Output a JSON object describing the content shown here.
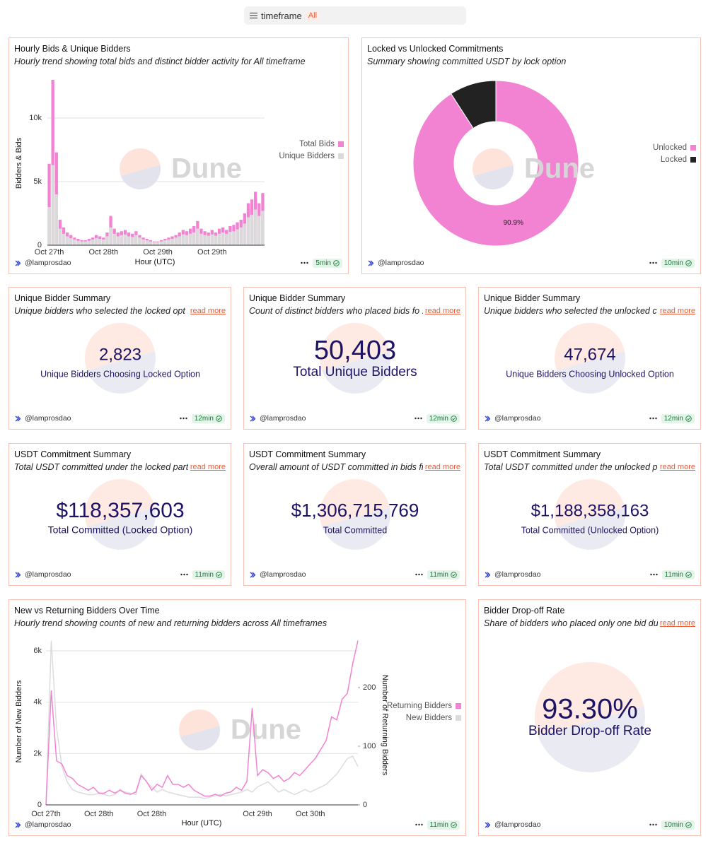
{
  "filter": {
    "label": "timeframe",
    "value": "All"
  },
  "chart_data": [
    {
      "type": "bar",
      "title": "Hourly Bids & Unique Bidders",
      "subtitle": "Hourly trend showing total bids and distinct bidder activity for All timeframe",
      "x_label": "Hour (UTC)",
      "y_label": "Bidders & Bids",
      "watermark": "Dune",
      "categories": [
        "Oct 27th",
        null,
        null,
        null,
        null,
        null,
        null,
        null,
        null,
        null,
        null,
        null,
        null,
        null,
        null,
        "Oct 28th",
        null,
        null,
        null,
        null,
        null,
        null,
        null,
        null,
        null,
        null,
        null,
        null,
        null,
        null,
        "Oct 29th",
        null,
        null,
        null,
        null,
        null,
        null,
        null,
        null,
        null,
        null,
        null,
        null,
        null,
        null,
        "Oct 29th",
        null,
        null,
        null,
        null,
        null,
        null,
        null,
        null,
        null,
        null,
        null,
        null,
        null,
        null
      ],
      "series": [
        {
          "name": "Total Bids",
          "color": "#f283d3",
          "values": [
            6400,
            13000,
            7300,
            2000,
            1400,
            1000,
            800,
            600,
            500,
            400,
            400,
            500,
            600,
            800,
            700,
            600,
            1000,
            2300,
            1300,
            1000,
            1100,
            1200,
            1000,
            900,
            1100,
            800,
            600,
            500,
            400,
            300,
            300,
            400,
            500,
            600,
            700,
            800,
            1000,
            1200,
            1100,
            1300,
            1500,
            1900,
            1300,
            1100,
            1000,
            1200,
            1000,
            1300,
            1400,
            1200,
            1500,
            1600,
            1800,
            2000,
            2500,
            3300,
            3600,
            4200,
            3300,
            4100
          ]
        },
        {
          "name": "Unique Bidders",
          "color": "#dadada",
          "values": [
            3000,
            6300,
            4000,
            1300,
            900,
            700,
            550,
            450,
            350,
            300,
            300,
            350,
            450,
            550,
            500,
            450,
            700,
            1400,
            900,
            700,
            800,
            850,
            700,
            650,
            800,
            600,
            450,
            380,
            300,
            250,
            250,
            300,
            380,
            450,
            500,
            600,
            700,
            850,
            800,
            900,
            1000,
            1300,
            900,
            800,
            750,
            850,
            750,
            900,
            1000,
            900,
            1050,
            1100,
            1250,
            1400,
            1700,
            2200,
            2400,
            2800,
            2300,
            2700
          ]
        }
      ],
      "ylim": [
        0,
        13000
      ],
      "yticks": [
        0,
        {
          "value": 5000,
          "label": "5k"
        },
        {
          "value": 10000,
          "label": "10k"
        }
      ],
      "grid": true,
      "legend": "right",
      "author": "@lamprosdao",
      "refresh": "5min"
    },
    {
      "type": "pie",
      "title": "Locked vs Unlocked Commitments",
      "subtitle": "Summary showing committed USDT by lock option",
      "watermark": "Dune",
      "categories": [
        "Unlocked",
        "Locked"
      ],
      "values": [
        90.9,
        9.1
      ],
      "value_labels": [
        "90.9%",
        "9.1%"
      ],
      "colors": [
        "#f283d3",
        "#222222"
      ],
      "legend": "right",
      "author": "@lamprosdao",
      "refresh": "10min"
    },
    {
      "type": "line",
      "title": "New vs Returning Bidders Over Time",
      "subtitle": "Hourly trend showing counts of new and returning bidders across All timeframes",
      "x_label": "Hour (UTC)",
      "y_label": "Number of New Bidders",
      "y2_label": "Number of Returning Bidders",
      "watermark": "Dune",
      "categories": [
        "Oct 27th",
        null,
        null,
        null,
        null,
        null,
        null,
        null,
        null,
        null,
        "Oct 28th",
        null,
        null,
        null,
        null,
        null,
        null,
        null,
        null,
        null,
        "Oct 28th",
        null,
        null,
        null,
        null,
        null,
        null,
        null,
        null,
        null,
        null,
        null,
        null,
        null,
        null,
        null,
        null,
        null,
        null,
        null,
        "Oct 29th",
        null,
        null,
        null,
        null,
        null,
        null,
        null,
        null,
        null,
        "Oct 30th",
        null,
        null,
        null,
        null,
        null,
        null,
        null,
        null,
        null
      ],
      "series": [
        {
          "name": "Returning Bidders",
          "color": "#f283d3",
          "axis": "y2",
          "values": [
            0,
            195,
            75,
            70,
            50,
            45,
            35,
            30,
            25,
            30,
            20,
            20,
            25,
            20,
            25,
            20,
            18,
            22,
            50,
            40,
            25,
            35,
            30,
            50,
            35,
            35,
            30,
            35,
            25,
            20,
            15,
            15,
            18,
            15,
            20,
            22,
            30,
            25,
            40,
            165,
            50,
            60,
            55,
            45,
            50,
            40,
            45,
            55,
            50,
            60,
            70,
            80,
            95,
            110,
            150,
            145,
            180,
            190,
            240,
            280
          ]
        },
        {
          "name": "New Bidders",
          "color": "#dcdcdc",
          "values": [
            0,
            6400,
            3000,
            1500,
            900,
            600,
            500,
            450,
            400,
            400,
            450,
            400,
            350,
            400,
            600,
            500,
            450,
            400,
            1200,
            900,
            700,
            500,
            600,
            500,
            450,
            400,
            350,
            300,
            300,
            300,
            250,
            300,
            350,
            400,
            350,
            400,
            450,
            500,
            600,
            500,
            700,
            800,
            900,
            700,
            500,
            600,
            500,
            400,
            500,
            600,
            500,
            600,
            700,
            800,
            1000,
            1200,
            1500,
            1800,
            1900,
            1500
          ]
        }
      ],
      "ylim": [
        0,
        6400
      ],
      "yticks": [
        0,
        {
          "value": 2000,
          "label": "2k"
        },
        {
          "value": 4000,
          "label": "4k"
        },
        {
          "value": 6000,
          "label": "6k"
        }
      ],
      "y2lim": [
        0,
        280
      ],
      "y2ticks": [
        0,
        100,
        200
      ],
      "grid": true,
      "legend": "right",
      "author": "@lamprosdao",
      "refresh": "11min"
    }
  ],
  "counters": [
    {
      "title": "Unique Bidder Summary",
      "subtitle": "Unique bidders who selected the locked opt ...",
      "link": "read more",
      "value": "2,823",
      "label": "Unique Bidders Choosing Locked Option",
      "author": "@lamprosdao",
      "refresh": "12min"
    },
    {
      "title": "Unique Bidder Summary",
      "subtitle": "Count of distinct bidders who placed bids fo ...",
      "link": "read more",
      "value": "50,403",
      "label": "Total Unique Bidders",
      "author": "@lamprosdao",
      "refresh": "12min"
    },
    {
      "title": "Unique Bidder Summary",
      "subtitle": "Unique bidders who selected the unlocked c ...",
      "link": "read more",
      "value": "47,674",
      "label": "Unique Bidders Choosing Unlocked Option",
      "author": "@lamprosdao",
      "refresh": "12min"
    },
    {
      "title": "USDT Commitment Summary",
      "subtitle": "Total USDT committed under the locked part ...",
      "link": "read more",
      "value": "$118,357,603",
      "label": "Total Committed (Locked Option)",
      "author": "@lamprosdao",
      "refresh": "11min"
    },
    {
      "title": "USDT Commitment Summary",
      "subtitle": "Overall amount of USDT committed in bids fi ...",
      "link": "read more",
      "value": "$1,306,715,769",
      "label": "Total Committed",
      "author": "@lamprosdao",
      "refresh": "11min"
    },
    {
      "title": "USDT Commitment Summary",
      "subtitle": "Total USDT committed under the unlocked p ...",
      "link": "read more",
      "value": "$1,188,358,163",
      "label": "Total Committed (Unlocked Option)",
      "author": "@lamprosdao",
      "refresh": "11min"
    },
    {
      "title": "Bidder Drop-off Rate",
      "subtitle": "Share of bidders who placed only one bid du ...",
      "link": "read more",
      "value": "93.30%",
      "label": "Bidder Drop-off Rate",
      "author": "@lamprosdao",
      "refresh": "10min"
    }
  ]
}
